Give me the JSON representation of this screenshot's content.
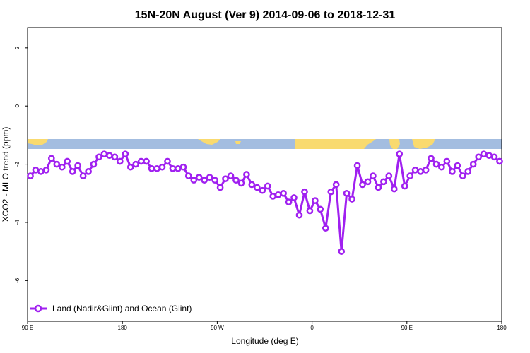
{
  "chart_data": {
    "type": "line",
    "title": "15N-20N August (Ver 9)   2014-09-06 to 2018-12-31",
    "xlabel": "Longitude (deg E)",
    "ylabel": "XCO2 - MLO trend (ppm)",
    "x_tick_labels": [
      "90 E",
      "180",
      "90 W",
      "0",
      "90 E",
      "180"
    ],
    "y_tick_labels": [
      "2",
      "0",
      "-2",
      "-4",
      "-6"
    ],
    "y_ticks": [
      2,
      0,
      -2,
      -4,
      -6
    ],
    "ylim": [
      -7.4,
      2.7
    ],
    "grid": false,
    "legend_position": "bottom-left",
    "series": [
      {
        "name": "Land (Nadir&Glint) and Ocean (Glint)",
        "color": "#a020f0",
        "values": [
          -2.4,
          -2.2,
          -2.25,
          -2.2,
          -1.8,
          -2.0,
          -2.1,
          -1.9,
          -2.25,
          -2.05,
          -2.4,
          -2.25,
          -2.0,
          -1.75,
          -1.65,
          -1.7,
          -1.75,
          -1.9,
          -1.65,
          -2.1,
          -2.0,
          -1.9,
          -1.9,
          -2.15,
          -2.15,
          -2.1,
          -1.9,
          -2.15,
          -2.15,
          -2.1,
          -2.4,
          -2.55,
          -2.45,
          -2.55,
          -2.45,
          -2.55,
          -2.8,
          -2.5,
          -2.4,
          -2.55,
          -2.65,
          -2.35,
          -2.7,
          -2.8,
          -2.9,
          -2.75,
          -3.1,
          -3.05,
          -3.0,
          -3.3,
          -3.15,
          -3.75,
          -2.95,
          -3.6,
          -3.25,
          -3.55,
          -4.2,
          -2.95,
          -2.7,
          -5.0,
          -3.0,
          -3.2,
          -2.05,
          -2.7,
          -2.6,
          -2.4,
          -2.8,
          -2.6,
          -2.4,
          -2.85,
          -1.65,
          -2.75,
          -2.4,
          -2.2,
          -2.25,
          -2.2,
          -1.8,
          -2.0,
          -2.1,
          -1.9,
          -2.25,
          -2.05,
          -2.4,
          -2.25,
          -2.0,
          -1.75,
          -1.65,
          -1.7,
          -1.75,
          -1.9
        ]
      }
    ]
  },
  "map_strip": {
    "ocean_color": "#a3bde0",
    "land_color": "#f9da6f"
  }
}
